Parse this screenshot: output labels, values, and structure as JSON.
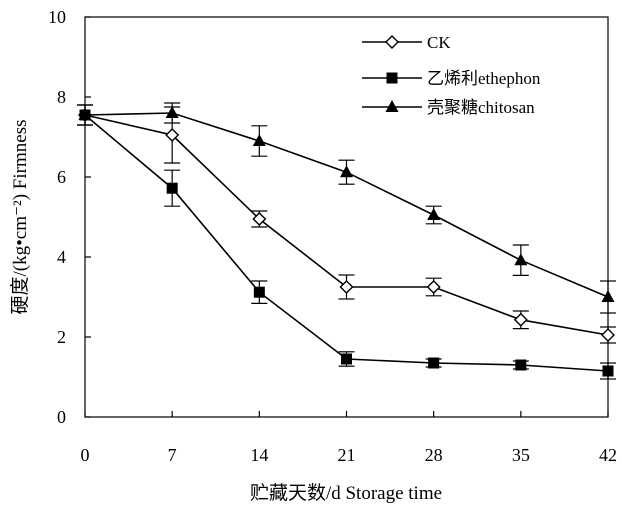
{
  "chart_data": {
    "type": "line",
    "title": "",
    "xlabel": "贮藏天数/d  Storage time",
    "ylabel": "硬度/(kg•cm⁻²)  Firmness",
    "x": [
      0,
      7,
      14,
      21,
      28,
      35,
      42
    ],
    "x_tick_labels": [
      "0",
      "7",
      "14",
      "21",
      "28",
      "35",
      "42"
    ],
    "y_tick_labels": [
      "0",
      "2",
      "4",
      "6",
      "8",
      "10"
    ],
    "xlim": [
      0,
      42
    ],
    "ylim": [
      0,
      10
    ],
    "grid": false,
    "legend_position": "top-right",
    "series": [
      {
        "name": "CK",
        "marker": "open-diamond",
        "values": [
          7.55,
          7.05,
          4.95,
          3.25,
          3.25,
          2.43,
          2.05
        ],
        "error": [
          0.25,
          0.7,
          0.2,
          0.3,
          0.22,
          0.22,
          0.2
        ]
      },
      {
        "name": "乙烯利ethephon",
        "marker": "filled-square",
        "values": [
          7.55,
          5.72,
          3.12,
          1.45,
          1.35,
          1.3,
          1.15
        ],
        "error": [
          0.25,
          0.45,
          0.28,
          0.18,
          0.1,
          0.1,
          0.2
        ]
      },
      {
        "name": "壳聚糖chitosan",
        "marker": "filled-triangle",
        "values": [
          7.55,
          7.6,
          6.9,
          6.12,
          5.05,
          3.92,
          3.0
        ],
        "error": [
          0.25,
          0.25,
          0.38,
          0.3,
          0.22,
          0.38,
          0.4
        ]
      }
    ]
  }
}
